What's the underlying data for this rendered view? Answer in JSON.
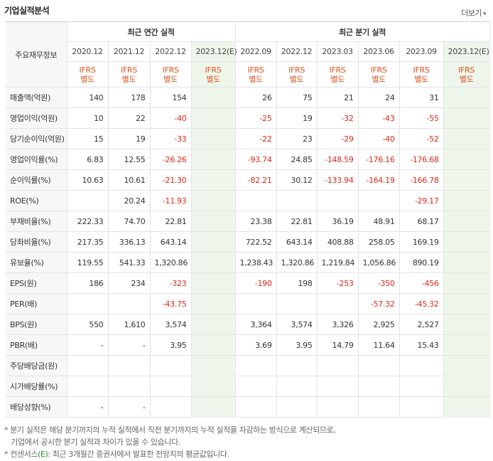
{
  "title": "기업실적분석",
  "more_label": "더보기",
  "more_arrow": "▾",
  "table": {
    "corner_label": "주요재무정보",
    "annual_header": "최근 연간 실적",
    "quarter_header": "최근 분기 실적",
    "annual_periods": [
      "2020.12",
      "2021.12",
      "2022.12"
    ],
    "annual_est_period": "2023.12(E)",
    "quarter_periods": [
      "2022.09",
      "2022.12",
      "2023.03",
      "2023.06",
      "2023.09"
    ],
    "quarter_est_period": "2023.12(E)",
    "ifrs_line1": "IFRS",
    "ifrs_line2": "별도",
    "rows": [
      {
        "label": "매출액(억원)",
        "values": [
          "140",
          "178",
          "154",
          "",
          "26",
          "75",
          "21",
          "24",
          "31",
          ""
        ]
      },
      {
        "label": "영업이익(억원)",
        "values": [
          "10",
          "22",
          "-40",
          "",
          "-25",
          "19",
          "-32",
          "-43",
          "-55",
          ""
        ]
      },
      {
        "label": "당기순이익(억원)",
        "values": [
          "15",
          "19",
          "-33",
          "",
          "-22",
          "23",
          "-29",
          "-40",
          "-52",
          ""
        ]
      },
      {
        "label": "영업이익률(%)",
        "values": [
          "6.83",
          "12.55",
          "-26.26",
          "",
          "-93.74",
          "24.85",
          "-148.59",
          "-176.16",
          "-176.68",
          ""
        ]
      },
      {
        "label": "순이익률(%)",
        "values": [
          "10.63",
          "10.61",
          "-21.30",
          "",
          "-82.21",
          "30.12",
          "-133.94",
          "-164.19",
          "-166.78",
          ""
        ]
      },
      {
        "label": "ROE(%)",
        "values": [
          "",
          "20.24",
          "-11.93",
          "",
          "",
          "",
          "",
          "",
          "-29.17",
          ""
        ]
      },
      {
        "label": "부채비율(%)",
        "values": [
          "222.33",
          "74.70",
          "22.81",
          "",
          "23.38",
          "22.81",
          "36.19",
          "48.91",
          "68.17",
          ""
        ]
      },
      {
        "label": "당좌비율(%)",
        "values": [
          "217.35",
          "336.13",
          "643.14",
          "",
          "722.52",
          "643.14",
          "408.88",
          "258.05",
          "169.19",
          ""
        ]
      },
      {
        "label": "유보율(%)",
        "values": [
          "119.55",
          "541.33",
          "1,320.86",
          "",
          "1,238.43",
          "1,320.86",
          "1,219.84",
          "1,056.86",
          "890.19",
          ""
        ]
      },
      {
        "label": "EPS(원)",
        "values": [
          "186",
          "234",
          "-323",
          "",
          "-190",
          "198",
          "-253",
          "-350",
          "-456",
          ""
        ]
      },
      {
        "label": "PER(배)",
        "values": [
          "",
          "",
          "-43.75",
          "",
          "",
          "",
          "",
          "-57.32",
          "-45.32",
          ""
        ]
      },
      {
        "label": "BPS(원)",
        "values": [
          "550",
          "1,610",
          "3,574",
          "",
          "3,364",
          "3,574",
          "3,326",
          "2,925",
          "2,527",
          ""
        ]
      },
      {
        "label": "PBR(배)",
        "values": [
          "-",
          "-",
          "3.95",
          "",
          "3.69",
          "3.95",
          "14.79",
          "11.64",
          "15.43",
          ""
        ]
      },
      {
        "label": "주당배당금(원)",
        "values": [
          "",
          "",
          "",
          "",
          "",
          "",
          "",
          "",
          "",
          ""
        ]
      },
      {
        "label": "시가배당률(%)",
        "values": [
          "",
          "",
          "",
          "",
          "",
          "",
          "",
          "",
          "",
          ""
        ]
      },
      {
        "label": "배당성향(%)",
        "values": [
          "-",
          "-",
          "",
          "",
          "",
          "",
          "",
          "",
          "",
          ""
        ]
      }
    ]
  },
  "notes": [
    "* 분기 실적은 해당 분기까지의 누적 실적에서 직전 분기까지의 누적 실적을 차감하는 방식으로 계산되므로,",
    "   기업에서 공시한 분기 실적과 차이가 있을 수 있습니다.",
    "* 컨센서스",
    "(E)",
    ": 최근 3개월간 증권사에서 발표한 전망치의 평균값입니다."
  ],
  "colors": {
    "negative": "#e0281b",
    "ifrs": "#e0531c",
    "estimate_bg": "#eef6ec"
  }
}
